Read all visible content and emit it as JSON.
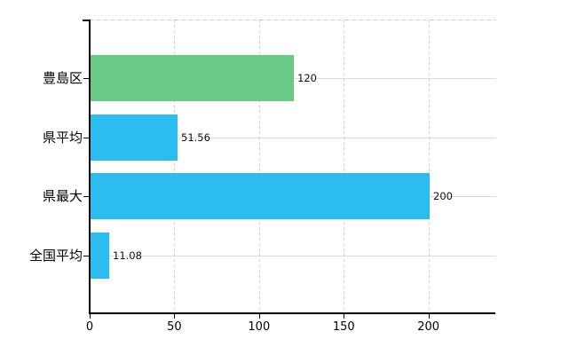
{
  "chart_data": {
    "type": "bar",
    "orientation": "horizontal",
    "title": "",
    "xlabel": "",
    "ylabel": "",
    "categories": [
      "豊島区",
      "県平均",
      "県最大",
      "全国平均"
    ],
    "values": [
      120,
      51.56,
      200,
      11.08
    ],
    "value_labels": [
      "120",
      "51.56",
      "200",
      "11.08"
    ],
    "bar_colors": [
      "#68ca85",
      "#2bbdf0",
      "#2bbdf0",
      "#2bbdf0"
    ],
    "x_ticks": [
      0,
      50,
      100,
      150,
      200
    ],
    "x_tick_labels": [
      "0",
      "50",
      "100",
      "150",
      "200"
    ],
    "xlim": [
      0,
      240
    ],
    "grid": {
      "horizontal_lines": "solid, one per category row",
      "vertical_lines": "dashed, at each x tick",
      "top_border": "dashed"
    },
    "legend": "none"
  },
  "colors": {
    "bar_green": "#68ca85",
    "bar_blue": "#2bbdf0",
    "h_gridline": "#d9ded7",
    "v_gridline": "#d6ced6",
    "top_border": "#c7c1c8",
    "axis": "#000000",
    "text": "#000000",
    "background": "#ffffff"
  }
}
